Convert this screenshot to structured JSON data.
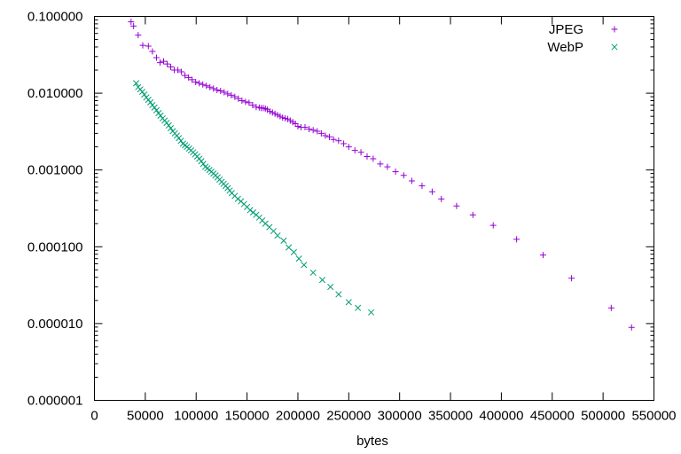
{
  "chart_data": {
    "type": "scatter",
    "title": "",
    "xlabel": "bytes",
    "ylabel": "",
    "xlim": [
      0,
      550000
    ],
    "ylim": [
      1e-06,
      0.1
    ],
    "yscale": "log",
    "grid": false,
    "legend_position": "top-right",
    "x_ticks": [
      0,
      50000,
      100000,
      150000,
      200000,
      250000,
      300000,
      350000,
      400000,
      450000,
      500000,
      550000
    ],
    "x_tick_labels": [
      "0",
      "50000",
      "100000",
      "150000",
      "200000",
      "250000",
      "300000",
      "350000",
      "400000",
      "450000",
      "500000",
      "550000"
    ],
    "y_ticks": [
      0.1,
      0.01,
      0.001,
      0.0001,
      1e-05,
      1e-06
    ],
    "y_tick_labels": [
      "0.100000",
      "0.010000",
      "0.001000",
      "0.000100",
      "0.000010",
      "0.000001"
    ],
    "series": [
      {
        "name": "JPEG",
        "marker": "+",
        "color": "#9400d3",
        "points": [
          [
            36000,
            0.085
          ],
          [
            38500,
            0.075
          ],
          [
            43000,
            0.057
          ],
          [
            47500,
            0.042
          ],
          [
            53000,
            0.041
          ],
          [
            57000,
            0.035
          ],
          [
            61000,
            0.029
          ],
          [
            64500,
            0.025
          ],
          [
            68000,
            0.026
          ],
          [
            71500,
            0.024
          ],
          [
            75000,
            0.022
          ],
          [
            78500,
            0.02
          ],
          [
            82000,
            0.02
          ],
          [
            85500,
            0.019
          ],
          [
            89000,
            0.017
          ],
          [
            92500,
            0.016
          ],
          [
            96000,
            0.015
          ],
          [
            99500,
            0.014
          ],
          [
            103000,
            0.0135
          ],
          [
            106500,
            0.013
          ],
          [
            110000,
            0.0125
          ],
          [
            113500,
            0.012
          ],
          [
            117000,
            0.0115
          ],
          [
            120500,
            0.011
          ],
          [
            124000,
            0.0107
          ],
          [
            127500,
            0.0103
          ],
          [
            131000,
            0.0098
          ],
          [
            134500,
            0.0094
          ],
          [
            138000,
            0.009
          ],
          [
            141500,
            0.0085
          ],
          [
            145000,
            0.008
          ],
          [
            148500,
            0.0077
          ],
          [
            152000,
            0.0075
          ],
          [
            155500,
            0.007
          ],
          [
            159000,
            0.0066
          ],
          [
            162000,
            0.0065
          ],
          [
            164000,
            0.0064
          ],
          [
            166000,
            0.0064
          ],
          [
            168000,
            0.0063
          ],
          [
            170000,
            0.0061
          ],
          [
            172500,
            0.0058
          ],
          [
            175000,
            0.0056
          ],
          [
            177500,
            0.0054
          ],
          [
            180000,
            0.0052
          ],
          [
            182500,
            0.005
          ],
          [
            185000,
            0.0048
          ],
          [
            187500,
            0.0047
          ],
          [
            190000,
            0.0046
          ],
          [
            192500,
            0.0044
          ],
          [
            195000,
            0.0042
          ],
          [
            197500,
            0.004
          ],
          [
            200000,
            0.0037
          ],
          [
            203000,
            0.0036
          ],
          [
            207000,
            0.0036
          ],
          [
            211000,
            0.0034
          ],
          [
            215000,
            0.0033
          ],
          [
            219000,
            0.0032
          ],
          [
            223000,
            0.003
          ],
          [
            227000,
            0.0028
          ],
          [
            231000,
            0.0027
          ],
          [
            235000,
            0.0025
          ],
          [
            240000,
            0.0024
          ],
          [
            245000,
            0.0022
          ],
          [
            250000,
            0.002
          ],
          [
            256000,
            0.0018
          ],
          [
            262000,
            0.0017
          ],
          [
            268000,
            0.0015
          ],
          [
            274000,
            0.0014
          ],
          [
            281000,
            0.0012
          ],
          [
            288000,
            0.0011
          ],
          [
            296000,
            0.00095
          ],
          [
            304000,
            0.00085
          ],
          [
            312000,
            0.00072
          ],
          [
            322000,
            0.00062
          ],
          [
            332000,
            0.00052
          ],
          [
            341000,
            0.00042
          ],
          [
            356000,
            0.00034
          ],
          [
            372000,
            0.00026
          ],
          [
            392000,
            0.00019
          ],
          [
            415000,
            0.000125
          ],
          [
            441000,
            7.8e-05
          ],
          [
            469000,
            3.9e-05
          ],
          [
            508000,
            1.6e-05
          ],
          [
            528000,
            8.9e-06
          ]
        ]
      },
      {
        "name": "WebP",
        "marker": "x",
        "color": "#009e73",
        "points": [
          [
            41000,
            0.0135
          ],
          [
            43000,
            0.012
          ],
          [
            45000,
            0.0112
          ],
          [
            47000,
            0.0104
          ],
          [
            49000,
            0.0096
          ],
          [
            51000,
            0.0088
          ],
          [
            53000,
            0.0082
          ],
          [
            55000,
            0.0076
          ],
          [
            57000,
            0.007
          ],
          [
            59000,
            0.0065
          ],
          [
            61000,
            0.006
          ],
          [
            63000,
            0.0055
          ],
          [
            65000,
            0.0051
          ],
          [
            67000,
            0.0047
          ],
          [
            69000,
            0.0044
          ],
          [
            71000,
            0.0041
          ],
          [
            73000,
            0.0038
          ],
          [
            75000,
            0.0035
          ],
          [
            77000,
            0.0032
          ],
          [
            79000,
            0.003
          ],
          [
            81000,
            0.0028
          ],
          [
            83000,
            0.0026
          ],
          [
            85000,
            0.0024
          ],
          [
            87000,
            0.0022
          ],
          [
            89000,
            0.0021
          ],
          [
            91000,
            0.002
          ],
          [
            93000,
            0.0019
          ],
          [
            95000,
            0.0018
          ],
          [
            97000,
            0.0017
          ],
          [
            99000,
            0.0016
          ],
          [
            101000,
            0.0015
          ],
          [
            103000,
            0.0014
          ],
          [
            105000,
            0.0013
          ],
          [
            107000,
            0.0012
          ],
          [
            109000,
            0.0011
          ],
          [
            111000,
            0.00105
          ],
          [
            113000,
            0.001
          ],
          [
            115000,
            0.00095
          ],
          [
            117000,
            0.0009
          ],
          [
            119000,
            0.00085
          ],
          [
            121000,
            0.0008
          ],
          [
            123000,
            0.00075
          ],
          [
            125000,
            0.0007
          ],
          [
            127000,
            0.00066
          ],
          [
            129000,
            0.00062
          ],
          [
            131000,
            0.00058
          ],
          [
            133000,
            0.00054
          ],
          [
            135000,
            0.0005
          ],
          [
            138000,
            0.00046
          ],
          [
            141000,
            0.00042
          ],
          [
            144000,
            0.00039
          ],
          [
            147000,
            0.00036
          ],
          [
            150000,
            0.00033
          ],
          [
            153000,
            0.0003
          ],
          [
            156000,
            0.00028
          ],
          [
            159000,
            0.00026
          ],
          [
            162000,
            0.00024
          ],
          [
            165000,
            0.00022
          ],
          [
            168000,
            0.0002
          ],
          [
            172000,
            0.00018
          ],
          [
            176000,
            0.00016
          ],
          [
            180000,
            0.00014
          ],
          [
            186000,
            0.00012
          ],
          [
            191000,
            9.8e-05
          ],
          [
            196000,
            8.5e-05
          ],
          [
            201000,
            7e-05
          ],
          [
            206000,
            5.8e-05
          ],
          [
            215000,
            4.6e-05
          ],
          [
            224000,
            3.7e-05
          ],
          [
            232000,
            3e-05
          ],
          [
            240000,
            2.4e-05
          ],
          [
            250000,
            1.9e-05
          ],
          [
            259000,
            1.6e-05
          ],
          [
            272000,
            1.4e-05
          ]
        ]
      }
    ]
  }
}
